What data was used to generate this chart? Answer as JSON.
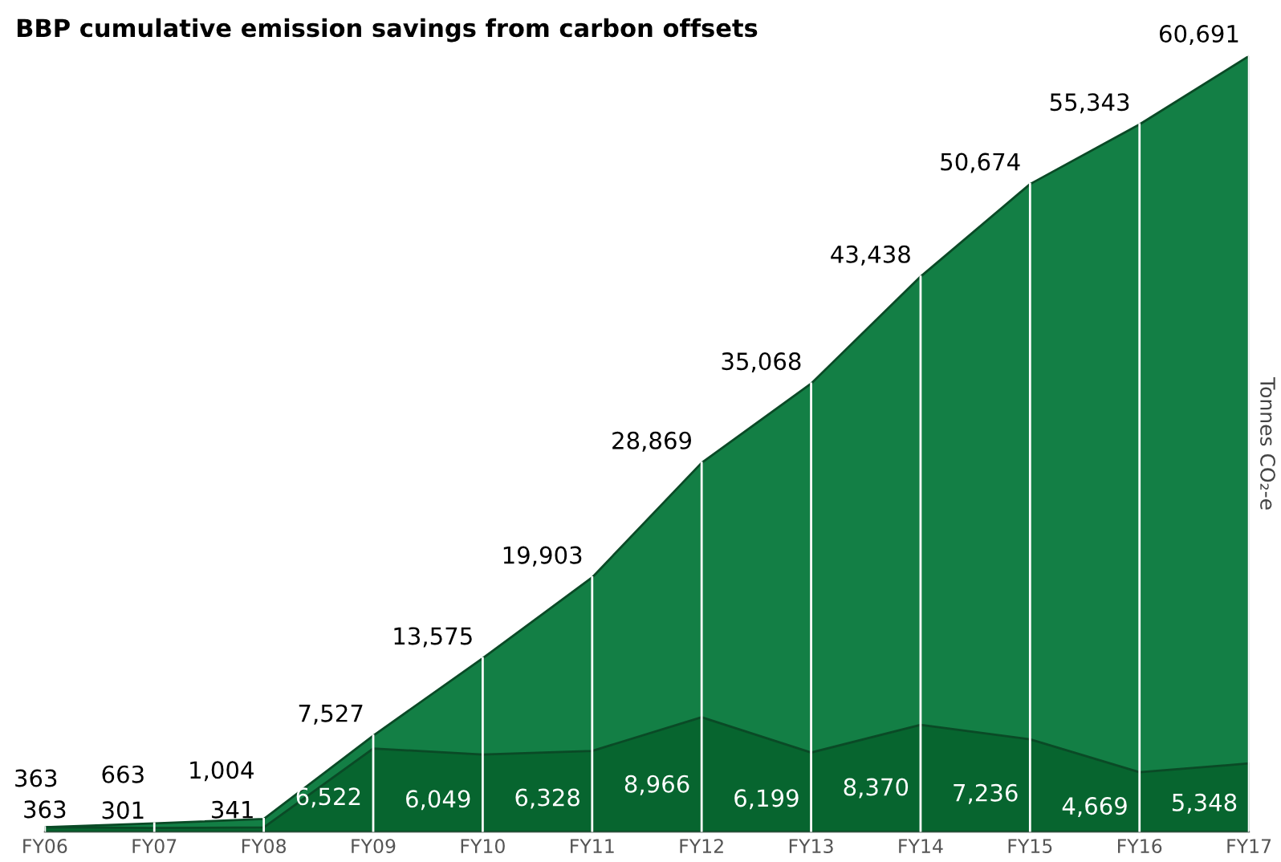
{
  "chart_data": {
    "type": "area",
    "title": "BBP cumulative emission savings from carbon offsets",
    "ylabel": "Tonnes CO₂-e",
    "categories": [
      "FY06",
      "FY07",
      "FY08",
      "FY09",
      "FY10",
      "FY11",
      "FY12",
      "FY13",
      "FY14",
      "FY15",
      "FY16",
      "FY17"
    ],
    "series": [
      {
        "color": "#137f45",
        "values": [
          363,
          663,
          1004,
          7527,
          13575,
          19903,
          28869,
          35068,
          43438,
          50674,
          55343,
          60691
        ],
        "value_labels": [
          "363",
          "663",
          "1,004",
          "7,527",
          "13,575",
          "19,903",
          "28,869",
          "35,068",
          "43,438",
          "50,674",
          "55,343",
          "60,691"
        ]
      },
      {
        "color": "#07652f",
        "values": [
          363,
          301,
          341,
          6522,
          6049,
          6328,
          8966,
          6199,
          8370,
          7236,
          4669,
          5348
        ],
        "value_labels": [
          "363",
          "301",
          "341",
          "6,522",
          "6,049",
          "6,328",
          "8,966",
          "6,199",
          "8,370",
          "7,236",
          "4,669",
          "5,348"
        ]
      }
    ],
    "grid": "x",
    "legend": false
  }
}
